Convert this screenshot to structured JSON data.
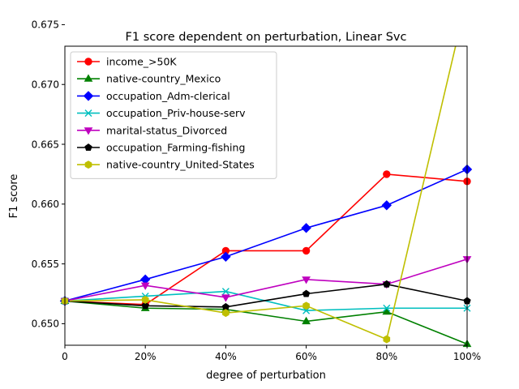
{
  "chart_data": {
    "type": "line",
    "title": "F1 score dependent on perturbation, Linear Svc",
    "xlabel": "degree of perturbation",
    "ylabel": "F1 score",
    "x": [
      0,
      20,
      40,
      60,
      80,
      100
    ],
    "x_tick_labels": [
      "0",
      "20%",
      "40%",
      "60%",
      "80%",
      "100%"
    ],
    "xlim": [
      0,
      100
    ],
    "ylim": [
      0.6482,
      0.6732
    ],
    "y_ticks": [
      0.65,
      0.655,
      0.66,
      0.665,
      0.67,
      0.675
    ],
    "y_tick_labels": [
      "0.650",
      "0.655",
      "0.660",
      "0.665",
      "0.670",
      "0.675"
    ],
    "grid": false,
    "legend_position": "upper-left",
    "series": [
      {
        "name": "income_>50K",
        "color": "#ff0000",
        "marker": "circle",
        "values": [
          0.6519,
          0.6516,
          0.6561,
          0.6561,
          0.6625,
          0.6619
        ]
      },
      {
        "name": "native-country_Mexico",
        "color": "#008000",
        "marker": "triangle-up",
        "values": [
          0.6519,
          0.6513,
          0.6512,
          0.6502,
          0.651,
          0.6483
        ]
      },
      {
        "name": "occupation_Adm-clerical",
        "color": "#0000ff",
        "marker": "diamond",
        "values": [
          0.6519,
          0.6537,
          0.6556,
          0.658,
          0.6599,
          0.6629
        ]
      },
      {
        "name": "occupation_Priv-house-serv",
        "color": "#00bfbf",
        "marker": "x",
        "values": [
          0.6519,
          0.6523,
          0.6527,
          0.6511,
          0.6513,
          0.6513
        ]
      },
      {
        "name": "marital-status_Divorced",
        "color": "#bf00bf",
        "marker": "triangle-down",
        "values": [
          0.6519,
          0.6532,
          0.6522,
          0.6537,
          0.6533,
          0.6554
        ]
      },
      {
        "name": "occupation_Farming-fishing",
        "color": "#000000",
        "marker": "pentagon",
        "values": [
          0.6519,
          0.6515,
          0.6514,
          0.6525,
          0.6533,
          0.6519
        ]
      },
      {
        "name": "native-country_United-States",
        "color": "#bfbf00",
        "marker": "hexagon",
        "values": [
          0.6519,
          0.652,
          0.6509,
          0.6515,
          0.6487,
          0.6773
        ]
      }
    ]
  }
}
